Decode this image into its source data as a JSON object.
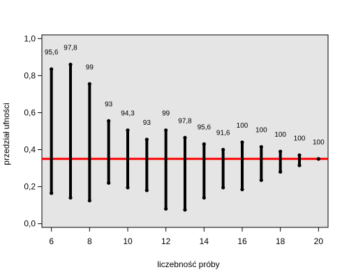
{
  "chart_data": {
    "type": "errorbar",
    "xlabel": "liczebność próby",
    "ylabel": "przedział ufności",
    "xlim": [
      5.5,
      20.5
    ],
    "ylim": [
      -0.02,
      1.02
    ],
    "x_ticks": [
      6,
      8,
      10,
      12,
      14,
      16,
      18,
      20
    ],
    "x_tick_labels": [
      "6",
      "8",
      "10",
      "12",
      "14",
      "16",
      "18",
      "20"
    ],
    "y_ticks": [
      0.0,
      0.2,
      0.4,
      0.6,
      0.8,
      1.0
    ],
    "y_tick_labels": [
      "0,0",
      "0,2",
      "0,4",
      "0,6",
      "0,8",
      "1,0"
    ],
    "reference_line": {
      "y": 0.35,
      "color": "#ff0000"
    },
    "panel_background": "#e5e5e5",
    "bar_color": "#000000",
    "intervals": [
      {
        "x": 6,
        "lower": 0.165,
        "upper": 0.835,
        "label": "95,6"
      },
      {
        "x": 7,
        "lower": 0.14,
        "upper": 0.86,
        "label": "97,8"
      },
      {
        "x": 8,
        "lower": 0.125,
        "upper": 0.755,
        "label": "99"
      },
      {
        "x": 9,
        "lower": 0.22,
        "upper": 0.555,
        "label": "93"
      },
      {
        "x": 10,
        "lower": 0.195,
        "upper": 0.505,
        "label": "94,3"
      },
      {
        "x": 11,
        "lower": 0.18,
        "upper": 0.455,
        "label": "93"
      },
      {
        "x": 12,
        "lower": 0.08,
        "upper": 0.505,
        "label": "99"
      },
      {
        "x": 13,
        "lower": 0.075,
        "upper": 0.465,
        "label": "97,8"
      },
      {
        "x": 14,
        "lower": 0.14,
        "upper": 0.43,
        "label": "95,6"
      },
      {
        "x": 15,
        "lower": 0.195,
        "upper": 0.4,
        "label": "91,6"
      },
      {
        "x": 16,
        "lower": 0.185,
        "upper": 0.44,
        "label": "100"
      },
      {
        "x": 17,
        "lower": 0.235,
        "upper": 0.415,
        "label": "100"
      },
      {
        "x": 18,
        "lower": 0.28,
        "upper": 0.39,
        "label": "100"
      },
      {
        "x": 19,
        "lower": 0.315,
        "upper": 0.37,
        "label": "100"
      },
      {
        "x": 20,
        "lower": 0.35,
        "upper": 0.35,
        "label": "100"
      }
    ]
  }
}
